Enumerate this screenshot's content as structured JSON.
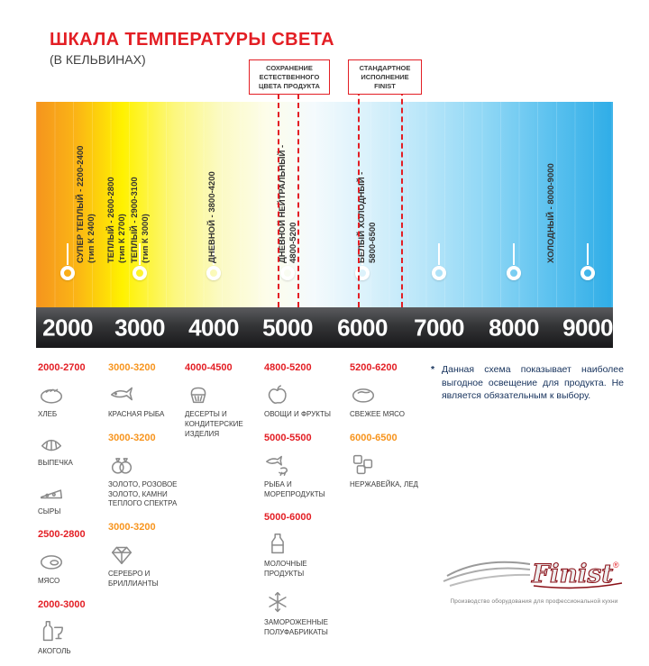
{
  "header": {
    "title": "ШКАЛА ТЕМПЕРАТУРЫ СВЕТА",
    "subtitle": "(В КЕЛЬВИНАХ)"
  },
  "callouts": [
    {
      "label": "СОХРАНЕНИЕ ЕСТЕСТВЕННОГО ЦВЕТА ПРОДУКТА"
    },
    {
      "label": "СТАНДАРТНОЕ ИСПОЛНЕНИЕ FINIST"
    }
  ],
  "scale": {
    "unit": "K",
    "ticks": [
      "2000",
      "3000",
      "4000",
      "5000",
      "6000",
      "7000",
      "8000",
      "9000"
    ],
    "zones": [
      {
        "name": "СУПЕР ТЕПЛЫЙ - 2200-2400",
        "sub": "(тип К 2400)"
      },
      {
        "name": "ТЕПЛЫЙ - 2600-2800",
        "sub": "(тип К 2700)"
      },
      {
        "name": "ТЕПЛЫЙ - 2900-3100",
        "sub": "(тип К 3000)"
      },
      {
        "name": "ДНЕВНОЙ - 3800-4200",
        "sub": ""
      },
      {
        "name": "ДНЕВНОЙ НЕЙТРАЛЬНЫЙ -",
        "sub": "4800-5200"
      },
      {
        "name": "БЕЛЫЙ ХОЛОДНЫЙ -",
        "sub": "5800-6500"
      },
      {
        "name": "ХОЛОДНЫЙ - 8000-9000",
        "sub": ""
      }
    ],
    "colors": {
      "warm": "#F5941E",
      "yellow": "#FFF200",
      "neutral": "#FDFDEA",
      "cold": "#2FADE7"
    }
  },
  "product_columns": [
    {
      "groups": [
        {
          "range": "2000-2700",
          "accent": "red",
          "items": [
            {
              "icon": "bread-icon",
              "label": "ХЛЕБ"
            },
            {
              "icon": "pastry-icon",
              "label": "ВЫПЕЧКА"
            },
            {
              "icon": "cheese-icon",
              "label": "СЫРЫ"
            }
          ]
        },
        {
          "range": "2500-2800",
          "accent": "red",
          "items": [
            {
              "icon": "meat-icon",
              "label": "МЯСО"
            }
          ]
        },
        {
          "range": "2000-3000",
          "accent": "red",
          "items": [
            {
              "icon": "alcohol-icon",
              "label": "АКОГОЛЬ"
            }
          ]
        }
      ]
    },
    {
      "groups": [
        {
          "range": "3000-3200",
          "accent": "orange",
          "items": [
            {
              "icon": "fish-icon",
              "label": "КРАСНАЯ РЫБА"
            }
          ]
        },
        {
          "range": "3000-3200",
          "accent": "orange",
          "items": [
            {
              "icon": "rings-icon",
              "label": "ЗОЛОТО, РОЗОВОЕ ЗОЛОТО, КАМНИ ТЕПЛОГО СПЕКТРА"
            }
          ]
        },
        {
          "range": "3000-3200",
          "accent": "orange",
          "items": [
            {
              "icon": "diamond-icon",
              "label": "СЕРЕБРО И БРИЛЛИАНТЫ"
            }
          ]
        }
      ]
    },
    {
      "groups": [
        {
          "range": "4000-4500",
          "accent": "red",
          "items": [
            {
              "icon": "dessert-icon",
              "label": "ДЕСЕРТЫ И КОНДИТЕРСКИЕ ИЗДЕЛИЯ"
            }
          ]
        }
      ]
    },
    {
      "groups": [
        {
          "range": "4800-5200",
          "accent": "red",
          "items": [
            {
              "icon": "fruits-icon",
              "label": "ОВОЩИ И ФРУКТЫ"
            }
          ]
        },
        {
          "range": "5000-5500",
          "accent": "red",
          "items": [
            {
              "icon": "seafood-icon",
              "label": "РЫБА И МОРЕПРОДУКТЫ"
            }
          ]
        },
        {
          "range": "5000-6000",
          "accent": "red",
          "items": [
            {
              "icon": "milk-icon",
              "label": "МОЛОЧНЫЕ ПРОДУКТЫ"
            },
            {
              "icon": "frozen-icon",
              "label": "ЗАМОРОЖЕННЫЕ ПОЛУФАБРИКАТЫ"
            }
          ]
        }
      ]
    },
    {
      "groups": [
        {
          "range": "5200-6200",
          "accent": "red",
          "items": [
            {
              "icon": "fresh-meat-icon",
              "label": "СВЕЖЕЕ МЯСО"
            }
          ]
        },
        {
          "range": "6000-6500",
          "accent": "orange",
          "items": [
            {
              "icon": "ice-icon",
              "label": "НЕРЖАВЕЙКА, ЛЕД"
            }
          ]
        }
      ]
    }
  ],
  "note": {
    "marker": "*",
    "text": "Данная схема показывает наиболее выгодное освещение для продукта. Не является обязательным к выбору."
  },
  "logo": {
    "name": "Finist",
    "reg": "®",
    "tagline": "Производство оборудования для профессиональной кухни"
  },
  "accent_colors": {
    "red": "#E31E24",
    "orange": "#F7941D"
  }
}
